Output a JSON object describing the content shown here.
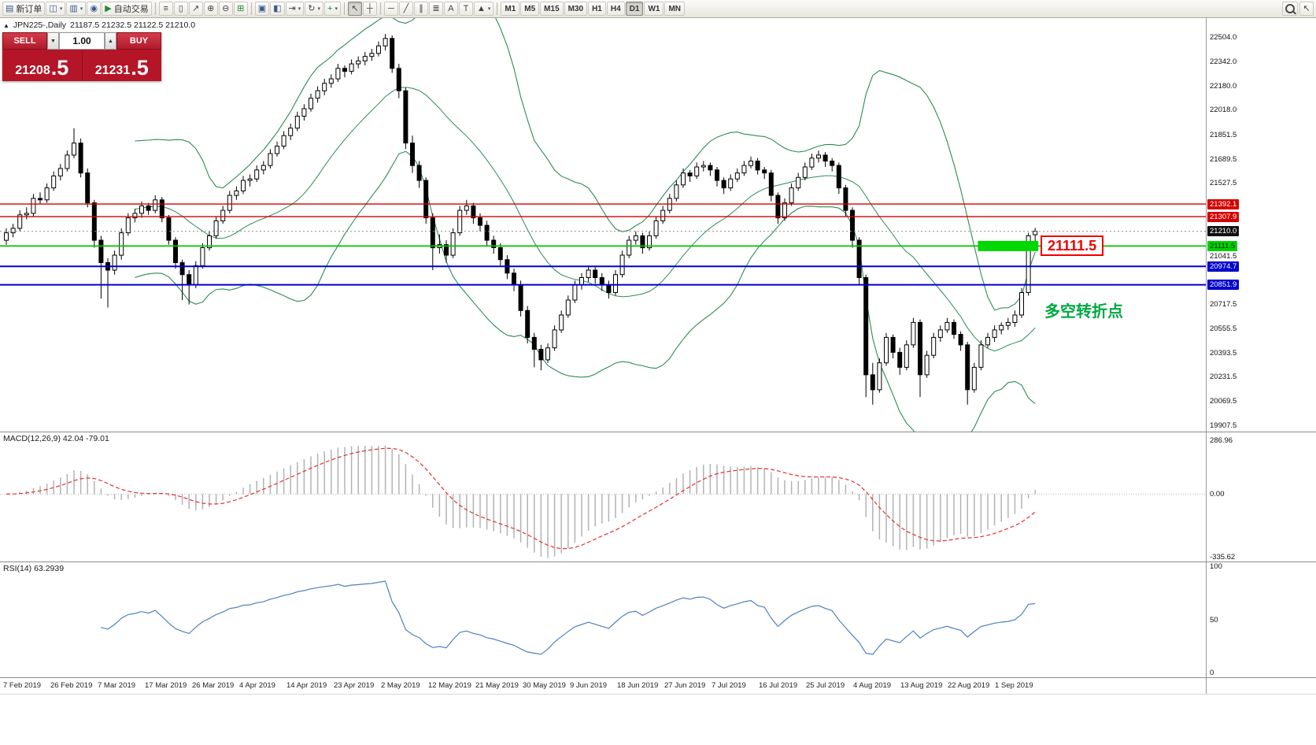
{
  "toolbar": {
    "groups": [
      [
        {
          "name": "new-order",
          "label": "新订单",
          "icon": "▤"
        },
        {
          "name": "new-chart",
          "icon": "◫",
          "caret": true
        },
        {
          "name": "profiles",
          "icon": "▥",
          "caret": true
        },
        {
          "name": "scripts",
          "icon": "◉"
        },
        {
          "name": "auto-trading",
          "label": "自动交易",
          "icon": "▶",
          "icls": "green"
        }
      ],
      [
        {
          "name": "bar-chart-mode",
          "icon": "≡",
          "icls": "dark"
        },
        {
          "name": "candlestick-mode",
          "icon": "▯",
          "icls": "dark"
        },
        {
          "name": "line-chart-mode",
          "icon": "↗",
          "icls": "dark"
        },
        {
          "name": "zoom-in",
          "icon": "⊕",
          "icls": "dark"
        },
        {
          "name": "zoom-out",
          "icon": "⊖",
          "icls": "dark"
        },
        {
          "name": "tile-windows",
          "icon": "⊞",
          "icls": "green"
        }
      ],
      [
        {
          "name": "arrange-windows",
          "icon": "▣"
        },
        {
          "name": "cascade-windows",
          "icon": "◧"
        },
        {
          "name": "chart-shift",
          "icon": "⇥",
          "icls": "dark",
          "caret": true
        },
        {
          "name": "auto-scroll",
          "icon": "↻",
          "icls": "dark",
          "caret": true
        },
        {
          "name": "indicators",
          "icon": "+",
          "icls": "green",
          "caret": true
        }
      ],
      [
        {
          "name": "cursor",
          "icon": "↖",
          "icls": "dark",
          "active": true
        },
        {
          "name": "crosshair",
          "icon": "┼",
          "icls": "dark"
        }
      ],
      [
        {
          "name": "horizontal-line-tool",
          "icon": "─",
          "icls": "dark"
        },
        {
          "name": "trendline-tool",
          "icon": "╱",
          "icls": "dark"
        },
        {
          "name": "channel-tool",
          "icon": "∥",
          "icls": "dark"
        },
        {
          "name": "fibonacci-tool",
          "icon": "≣",
          "icls": "dark"
        },
        {
          "name": "text-tool",
          "icon": "A",
          "icls": "dark"
        },
        {
          "name": "label-tool",
          "icon": "T",
          "icls": "dark"
        },
        {
          "name": "arrows-tool",
          "icon": "▲",
          "icls": "dark",
          "caret": true
        }
      ]
    ],
    "timeframes": [
      "M1",
      "M5",
      "M15",
      "M30",
      "H1",
      "H4",
      "D1",
      "W1",
      "MN"
    ],
    "active_timeframe": "D1"
  },
  "chart_header": {
    "toggle_icon": "▲",
    "symbol_period": "JPN225-,Daily",
    "ohlc": "21187.5 21232.5 21122.5 21210.0"
  },
  "trade_panel": {
    "sell_label": "SELL",
    "buy_label": "BUY",
    "volume": "1.00",
    "spin_down": "▼",
    "spin_up": "▲",
    "sell_price_main": "21208",
    "sell_price_frac": ".5",
    "buy_price_main": "21231",
    "buy_price_frac": ".5"
  },
  "annotations": {
    "level_label": "21111.5",
    "note": "多空转折点"
  },
  "price_axis": {
    "ticks": [
      22504.0,
      22342.0,
      22180.0,
      22018.0,
      21851.5,
      21689.5,
      21527.5,
      21041.5,
      20717.5,
      20555.5,
      20393.5,
      20231.5,
      20069.5,
      19907.5
    ],
    "tags": [
      {
        "value": "21392.1",
        "price": 21392.1,
        "type": "red"
      },
      {
        "value": "21307.9",
        "price": 21307.9,
        "type": "red"
      },
      {
        "value": "21210.0",
        "price": 21210.0,
        "type": "black"
      },
      {
        "value": "21111.5",
        "price": 21111.5,
        "type": "green"
      },
      {
        "value": "20974.7",
        "price": 20974.7,
        "type": "blue"
      },
      {
        "value": "20851.9",
        "price": 20851.9,
        "type": "blue"
      }
    ]
  },
  "macd_panel": {
    "label": "MACD(12,26,9) 42.04 -79.01",
    "ticks": [
      {
        "v": 286.96,
        "t": "286.96"
      },
      {
        "v": 0,
        "t": "0.00"
      },
      {
        "v": -335.62,
        "t": "-335.62"
      }
    ]
  },
  "rsi_panel": {
    "label": "RSI(14) 63.2939",
    "ticks": [
      {
        "v": 100,
        "t": "100"
      },
      {
        "v": 50,
        "t": "50"
      },
      {
        "v": 0,
        "t": "0"
      }
    ]
  },
  "chart_data": {
    "type": "candlestick",
    "symbol": "JPN225-",
    "period": "Daily",
    "last_ohlc": {
      "open": 21187.5,
      "high": 21232.5,
      "low": 21122.5,
      "close": 21210.0
    },
    "price_domain": [
      19870,
      22636
    ],
    "x_labels": [
      "7 Feb 2019",
      "26 Feb 2019",
      "7 Mar 2019",
      "17 Mar 2019",
      "26 Mar 2019",
      "4 Apr 2019",
      "14 Apr 2019",
      "23 Apr 2019",
      "2 May 2019",
      "12 May 2019",
      "21 May 2019",
      "30 May 2019",
      "9 Jun 2019",
      "18 Jun 2019",
      "27 Jun 2019",
      "7 Jul 2019",
      "16 Jul 2019",
      "25 Jul 2019",
      "4 Aug 2019",
      "13 Aug 2019",
      "22 Aug 2019",
      "1 Sep 2019"
    ],
    "candles": [
      [
        21150,
        21230,
        21120,
        21200
      ],
      [
        21200,
        21260,
        21170,
        21230
      ],
      [
        21230,
        21350,
        21210,
        21320
      ],
      [
        21320,
        21370,
        21290,
        21330
      ],
      [
        21330,
        21460,
        21310,
        21430
      ],
      [
        21430,
        21470,
        21390,
        21420
      ],
      [
        21420,
        21530,
        21400,
        21500
      ],
      [
        21500,
        21610,
        21480,
        21580
      ],
      [
        21580,
        21660,
        21550,
        21630
      ],
      [
        21630,
        21750,
        21610,
        21720
      ],
      [
        21720,
        21900,
        21700,
        21800
      ],
      [
        21800,
        21830,
        21570,
        21600
      ],
      [
        21600,
        21630,
        21370,
        21400
      ],
      [
        21400,
        21420,
        21100,
        21150
      ],
      [
        21150,
        21180,
        20760,
        21000
      ],
      [
        21000,
        21030,
        20700,
        20950
      ],
      [
        20950,
        21080,
        20920,
        21050
      ],
      [
        21050,
        21230,
        21020,
        21200
      ],
      [
        21200,
        21330,
        21180,
        21300
      ],
      [
        21300,
        21360,
        21270,
        21330
      ],
      [
        21330,
        21410,
        21300,
        21380
      ],
      [
        21380,
        21400,
        21320,
        21350
      ],
      [
        21350,
        21450,
        21330,
        21420
      ],
      [
        21420,
        21440,
        21270,
        21300
      ],
      [
        21300,
        21320,
        21120,
        21150
      ],
      [
        21150,
        21170,
        20960,
        21000
      ],
      [
        21000,
        21020,
        20750,
        20920
      ],
      [
        20920,
        20950,
        20720,
        20850
      ],
      [
        20850,
        21010,
        20830,
        20980
      ],
      [
        20980,
        21130,
        20960,
        21100
      ],
      [
        21100,
        21210,
        21080,
        21180
      ],
      [
        21180,
        21310,
        21160,
        21280
      ],
      [
        21280,
        21380,
        21260,
        21350
      ],
      [
        21350,
        21480,
        21330,
        21450
      ],
      [
        21450,
        21510,
        21420,
        21480
      ],
      [
        21480,
        21580,
        21460,
        21550
      ],
      [
        21550,
        21590,
        21510,
        21560
      ],
      [
        21560,
        21650,
        21540,
        21620
      ],
      [
        21620,
        21680,
        21590,
        21650
      ],
      [
        21650,
        21760,
        21630,
        21730
      ],
      [
        21730,
        21810,
        21710,
        21780
      ],
      [
        21780,
        21880,
        21760,
        21850
      ],
      [
        21850,
        21930,
        21820,
        21900
      ],
      [
        21900,
        22010,
        21880,
        21980
      ],
      [
        21980,
        22060,
        21950,
        22030
      ],
      [
        22030,
        22130,
        22010,
        22100
      ],
      [
        22100,
        22180,
        22070,
        22150
      ],
      [
        22150,
        22230,
        22120,
        22200
      ],
      [
        22200,
        22260,
        22170,
        22230
      ],
      [
        22230,
        22330,
        22210,
        22300
      ],
      [
        22300,
        22320,
        22240,
        22280
      ],
      [
        22280,
        22360,
        22260,
        22330
      ],
      [
        22330,
        22380,
        22300,
        22350
      ],
      [
        22350,
        22410,
        22320,
        22380
      ],
      [
        22380,
        22430,
        22350,
        22400
      ],
      [
        22400,
        22480,
        22380,
        22450
      ],
      [
        22450,
        22530,
        22420,
        22500
      ],
      [
        22500,
        22520,
        22270,
        22300
      ],
      [
        22300,
        22330,
        22100,
        22150
      ],
      [
        22150,
        22170,
        21760,
        21800
      ],
      [
        21800,
        21850,
        21600,
        21650
      ],
      [
        21650,
        21680,
        21500,
        21550
      ],
      [
        21550,
        21570,
        21260,
        21300
      ],
      [
        21300,
        21330,
        20950,
        21100
      ],
      [
        21100,
        21190,
        21060,
        21120
      ],
      [
        21120,
        21150,
        21000,
        21050
      ],
      [
        21050,
        21230,
        21030,
        21200
      ],
      [
        21200,
        21380,
        21180,
        21350
      ],
      [
        21350,
        21420,
        21320,
        21380
      ],
      [
        21380,
        21400,
        21260,
        21300
      ],
      [
        21300,
        21330,
        21210,
        21250
      ],
      [
        21250,
        21280,
        21110,
        21150
      ],
      [
        21150,
        21180,
        21060,
        21100
      ],
      [
        21100,
        21130,
        20980,
        21020
      ],
      [
        21020,
        21050,
        20890,
        20930
      ],
      [
        20930,
        20960,
        20810,
        20850
      ],
      [
        20850,
        20880,
        20640,
        20680
      ],
      [
        20680,
        20710,
        20460,
        20500
      ],
      [
        20500,
        20530,
        20300,
        20420
      ],
      [
        20420,
        20450,
        20280,
        20350
      ],
      [
        20350,
        20460,
        20330,
        20430
      ],
      [
        20430,
        20580,
        20410,
        20550
      ],
      [
        20550,
        20680,
        20530,
        20650
      ],
      [
        20650,
        20780,
        20630,
        20750
      ],
      [
        20750,
        20880,
        20730,
        20850
      ],
      [
        20850,
        20930,
        20820,
        20900
      ],
      [
        20900,
        20980,
        20870,
        20950
      ],
      [
        20950,
        20970,
        20860,
        20900
      ],
      [
        20900,
        20930,
        20810,
        20850
      ],
      [
        20850,
        20880,
        20760,
        20800
      ],
      [
        20800,
        20950,
        20780,
        20920
      ],
      [
        20920,
        21080,
        20900,
        21050
      ],
      [
        21050,
        21180,
        21030,
        21150
      ],
      [
        21150,
        21210,
        21120,
        21180
      ],
      [
        21180,
        21200,
        21060,
        21100
      ],
      [
        21100,
        21210,
        21080,
        21180
      ],
      [
        21180,
        21310,
        21160,
        21280
      ],
      [
        21280,
        21380,
        21260,
        21350
      ],
      [
        21350,
        21460,
        21330,
        21430
      ],
      [
        21430,
        21550,
        21410,
        21520
      ],
      [
        21520,
        21630,
        21500,
        21600
      ],
      [
        21600,
        21620,
        21540,
        21580
      ],
      [
        21580,
        21670,
        21560,
        21640
      ],
      [
        21640,
        21680,
        21610,
        21650
      ],
      [
        21650,
        21670,
        21580,
        21620
      ],
      [
        21620,
        21640,
        21510,
        21550
      ],
      [
        21550,
        21570,
        21460,
        21500
      ],
      [
        21500,
        21590,
        21480,
        21560
      ],
      [
        21560,
        21630,
        21540,
        21600
      ],
      [
        21600,
        21680,
        21580,
        21650
      ],
      [
        21650,
        21710,
        21630,
        21680
      ],
      [
        21680,
        21700,
        21590,
        21620
      ],
      [
        21620,
        21640,
        21560,
        21600
      ],
      [
        21600,
        21620,
        21410,
        21450
      ],
      [
        21450,
        21470,
        21260,
        21300
      ],
      [
        21300,
        21430,
        21280,
        21400
      ],
      [
        21400,
        21530,
        21380,
        21500
      ],
      [
        21500,
        21600,
        21480,
        21570
      ],
      [
        21570,
        21670,
        21550,
        21640
      ],
      [
        21640,
        21730,
        21620,
        21700
      ],
      [
        21700,
        21750,
        21670,
        21720
      ],
      [
        21720,
        21740,
        21640,
        21680
      ],
      [
        21680,
        21700,
        21610,
        21650
      ],
      [
        21650,
        21670,
        21460,
        21500
      ],
      [
        21500,
        21520,
        21310,
        21350
      ],
      [
        21350,
        21370,
        21100,
        21150
      ],
      [
        21150,
        21170,
        20850,
        20900
      ],
      [
        20900,
        20920,
        20100,
        20250
      ],
      [
        20250,
        20330,
        20050,
        20150
      ],
      [
        20150,
        20360,
        20130,
        20330
      ],
      [
        20330,
        20530,
        20310,
        20500
      ],
      [
        20500,
        20520,
        20360,
        20400
      ],
      [
        20400,
        20430,
        20250,
        20300
      ],
      [
        20300,
        20480,
        20280,
        20450
      ],
      [
        20450,
        20630,
        20430,
        20600
      ],
      [
        20600,
        20620,
        20100,
        20250
      ],
      [
        20250,
        20410,
        20230,
        20380
      ],
      [
        20380,
        20530,
        20360,
        20500
      ],
      [
        20500,
        20580,
        20470,
        20550
      ],
      [
        20550,
        20630,
        20530,
        20600
      ],
      [
        20600,
        20620,
        20490,
        20520
      ],
      [
        20520,
        20540,
        20410,
        20450
      ],
      [
        20450,
        20470,
        20050,
        20150
      ],
      [
        20150,
        20330,
        20130,
        20300
      ],
      [
        20300,
        20480,
        20280,
        20450
      ],
      [
        20450,
        20530,
        20430,
        20500
      ],
      [
        20500,
        20580,
        20470,
        20550
      ],
      [
        20550,
        20600,
        20520,
        20580
      ],
      [
        20580,
        20630,
        20550,
        20600
      ],
      [
        20600,
        20680,
        20570,
        20650
      ],
      [
        20650,
        20830,
        20630,
        20800
      ],
      [
        20800,
        21200,
        20780,
        21180
      ],
      [
        21187.5,
        21232.5,
        21122.5,
        21210
      ]
    ],
    "levels": [
      {
        "price": 21392.1,
        "color": "#d40000",
        "width": 1.4
      },
      {
        "price": 21307.9,
        "color": "#d40000",
        "width": 1.4
      },
      {
        "price": 21210.0,
        "color": "#8c8c8c",
        "width": 1,
        "style": "dotted"
      },
      {
        "price": 21111.5,
        "color": "#00c400",
        "width": 1.8
      },
      {
        "price": 20974.7,
        "color": "#0000cd",
        "width": 2
      },
      {
        "price": 20851.9,
        "color": "#0000cd",
        "width": 2
      }
    ],
    "highlight_box": {
      "price": 21111.5,
      "from_index": 144,
      "to_index": 152,
      "height": 13,
      "color": "#00d800"
    },
    "note_anchor_price": 20700,
    "indicators": {
      "bollinger": {
        "period": 20,
        "deviation": 2
      },
      "macd": {
        "fast": 12,
        "slow": 26,
        "signal": 9,
        "domain": [
          -360,
          330
        ]
      },
      "rsi": {
        "period": 14,
        "domain": [
          0,
          100
        ],
        "value": 63.2939
      }
    },
    "colors": {
      "up": "#ffffff",
      "down": "#000000",
      "wick": "#000000",
      "bollinger": "#2e8b57",
      "macd_bars": "#b2b2b2",
      "macd_signal": "#e03232",
      "rsi": "#4f81bd",
      "current_price_line": "#8c8c8c"
    }
  }
}
